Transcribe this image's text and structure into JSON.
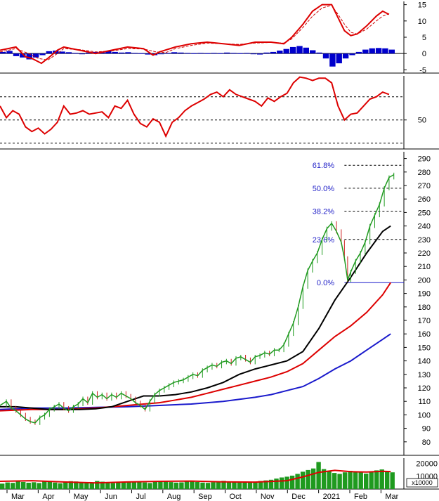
{
  "chart_data": {
    "type": "line",
    "months": [
      "Mar",
      "Apr",
      "May",
      "Jun",
      "Jul",
      "Aug",
      "Sep",
      "Oct",
      "Nov",
      "Dec",
      "2021",
      "Feb",
      "Mar"
    ],
    "macd": {
      "ticks": [
        15,
        10,
        5,
        0,
        -5
      ],
      "range": [
        -6,
        16
      ],
      "line": [
        [
          0,
          1
        ],
        [
          1,
          2
        ],
        [
          1.6,
          -1
        ],
        [
          2,
          -1.5
        ],
        [
          2.6,
          -3
        ],
        [
          3,
          -1.5
        ],
        [
          3.6,
          1
        ],
        [
          4,
          2
        ],
        [
          5,
          1
        ],
        [
          6,
          0
        ],
        [
          7,
          1
        ],
        [
          8,
          2
        ],
        [
          9,
          1.5
        ],
        [
          9.6,
          -0.5
        ],
        [
          10,
          0.5
        ],
        [
          11,
          2
        ],
        [
          12,
          3
        ],
        [
          13,
          3.5
        ],
        [
          14,
          3
        ],
        [
          15,
          2.5
        ],
        [
          16,
          3.5
        ],
        [
          17,
          3.5
        ],
        [
          17.8,
          3
        ],
        [
          18.3,
          5
        ],
        [
          19,
          9
        ],
        [
          19.6,
          13
        ],
        [
          20.2,
          15
        ],
        [
          20.8,
          15
        ],
        [
          21.2,
          11
        ],
        [
          21.6,
          7
        ],
        [
          22,
          5.5
        ],
        [
          22.4,
          6
        ],
        [
          23,
          8.5
        ],
        [
          23.6,
          11.5
        ],
        [
          24,
          13
        ],
        [
          24.4,
          12
        ]
      ],
      "signal": [
        [
          0,
          0.5
        ],
        [
          1,
          1.5
        ],
        [
          1.8,
          0
        ],
        [
          2.4,
          -1.5
        ],
        [
          3,
          -2
        ],
        [
          3.6,
          0
        ],
        [
          4,
          1.5
        ],
        [
          5,
          1.2
        ],
        [
          6,
          0.5
        ],
        [
          7,
          0.8
        ],
        [
          8,
          1.5
        ],
        [
          9,
          1.4
        ],
        [
          9.8,
          0.5
        ],
        [
          10.4,
          0.3
        ],
        [
          11,
          1.5
        ],
        [
          12,
          2.5
        ],
        [
          13,
          3.2
        ],
        [
          14,
          3
        ],
        [
          15,
          2.8
        ],
        [
          16,
          3.2
        ],
        [
          17,
          3.4
        ],
        [
          17.8,
          3.2
        ],
        [
          18.3,
          4.5
        ],
        [
          19,
          8
        ],
        [
          19.6,
          11.5
        ],
        [
          20.2,
          14
        ],
        [
          20.8,
          14.8
        ],
        [
          21.2,
          12
        ],
        [
          21.6,
          9
        ],
        [
          22,
          6.5
        ],
        [
          22.4,
          6
        ],
        [
          23,
          7.5
        ],
        [
          23.6,
          10
        ],
        [
          24,
          11.5
        ],
        [
          24.4,
          12.2
        ]
      ],
      "histogram": [
        0.5,
        0.8,
        -0.8,
        -1.2,
        -1.8,
        -1.2,
        -0.5,
        0.7,
        0.9,
        0.6,
        0.4,
        0.2,
        -0.2,
        0.3,
        0.5,
        0.6,
        0.8,
        0.5,
        0.3,
        0.4,
        0.2,
        0.1,
        -0.3,
        -0.5,
        -0.2,
        0.2,
        0.4,
        0.3,
        0.2,
        0.1,
        0.2,
        0.1,
        0.2,
        0.1,
        0.3,
        0.2,
        0.1,
        0.2,
        -0.1,
        -0.3,
        0.3,
        0.5,
        0.9,
        1.4,
        2.0,
        2.3,
        1.8,
        1.0,
        0.3,
        -1.5,
        -4.0,
        -3.0,
        -1.5,
        -0.5,
        0.5,
        1.2,
        1.6,
        1.7,
        1.6,
        1.2
      ]
    },
    "rsi": {
      "tick": 50,
      "range": [
        25,
        88
      ],
      "levels": [
        70,
        50,
        30
      ],
      "values": [
        [
          0,
          62
        ],
        [
          0.4,
          52
        ],
        [
          0.8,
          58
        ],
        [
          1.2,
          55
        ],
        [
          1.6,
          44
        ],
        [
          2,
          40
        ],
        [
          2.4,
          43
        ],
        [
          2.8,
          38
        ],
        [
          3.2,
          42
        ],
        [
          3.6,
          48
        ],
        [
          4,
          62
        ],
        [
          4.4,
          55
        ],
        [
          4.8,
          56
        ],
        [
          5.2,
          58
        ],
        [
          5.6,
          55
        ],
        [
          6,
          56
        ],
        [
          6.4,
          57
        ],
        [
          6.8,
          52
        ],
        [
          7.2,
          62
        ],
        [
          7.6,
          60
        ],
        [
          8,
          67
        ],
        [
          8.4,
          55
        ],
        [
          8.8,
          47
        ],
        [
          9.2,
          44
        ],
        [
          9.6,
          51
        ],
        [
          10,
          48
        ],
        [
          10.4,
          36
        ],
        [
          10.8,
          48
        ],
        [
          11.2,
          52
        ],
        [
          11.6,
          58
        ],
        [
          12,
          62
        ],
        [
          12.4,
          65
        ],
        [
          12.8,
          68
        ],
        [
          13.2,
          72
        ],
        [
          13.6,
          74
        ],
        [
          14,
          70
        ],
        [
          14.4,
          76
        ],
        [
          14.8,
          72
        ],
        [
          15.2,
          70
        ],
        [
          15.6,
          68
        ],
        [
          16,
          66
        ],
        [
          16.4,
          62
        ],
        [
          16.8,
          69
        ],
        [
          17.2,
          66
        ],
        [
          17.6,
          70
        ],
        [
          18,
          73
        ],
        [
          18.4,
          82
        ],
        [
          18.8,
          87
        ],
        [
          19.2,
          86
        ],
        [
          19.6,
          84
        ],
        [
          20,
          86
        ],
        [
          20.4,
          86
        ],
        [
          20.8,
          82
        ],
        [
          21.2,
          62
        ],
        [
          21.6,
          50
        ],
        [
          22,
          55
        ],
        [
          22.4,
          56
        ],
        [
          22.8,
          62
        ],
        [
          23.2,
          68
        ],
        [
          23.6,
          70
        ],
        [
          24,
          74
        ],
        [
          24.4,
          72
        ]
      ]
    },
    "price": {
      "ticks": [
        290,
        280,
        270,
        260,
        250,
        240,
        230,
        220,
        210,
        200,
        190,
        180,
        170,
        160,
        150,
        140,
        130,
        120,
        110,
        100,
        90,
        80
      ],
      "range": [
        70,
        295
      ],
      "close": [
        [
          0,
          107
        ],
        [
          0.4,
          110
        ],
        [
          0.7,
          105
        ],
        [
          1,
          103
        ],
        [
          1.3,
          100
        ],
        [
          1.6,
          97
        ],
        [
          1.9,
          95
        ],
        [
          2.2,
          94
        ],
        [
          2.5,
          98
        ],
        [
          2.8,
          100
        ],
        [
          3.1,
          104
        ],
        [
          3.4,
          106
        ],
        [
          3.7,
          108
        ],
        [
          4,
          105
        ],
        [
          4.3,
          103
        ],
        [
          4.6,
          106
        ],
        [
          4.9,
          108
        ],
        [
          5.2,
          112
        ],
        [
          5.5,
          109
        ],
        [
          5.8,
          116
        ],
        [
          6.1,
          113
        ],
        [
          6.4,
          115
        ],
        [
          6.7,
          112
        ],
        [
          7,
          115
        ],
        [
          7.3,
          113
        ],
        [
          7.6,
          116
        ],
        [
          7.9,
          114
        ],
        [
          8.2,
          112
        ],
        [
          8.5,
          109
        ],
        [
          8.8,
          107
        ],
        [
          9.1,
          104
        ],
        [
          9.4,
          110
        ],
        [
          9.7,
          115
        ],
        [
          10,
          118
        ],
        [
          10.3,
          120
        ],
        [
          10.6,
          122
        ],
        [
          10.9,
          124
        ],
        [
          11.2,
          125
        ],
        [
          11.5,
          126
        ],
        [
          11.8,
          128
        ],
        [
          12.1,
          130
        ],
        [
          12.4,
          129
        ],
        [
          12.7,
          133
        ],
        [
          13,
          135
        ],
        [
          13.3,
          137
        ],
        [
          13.6,
          136
        ],
        [
          13.9,
          139
        ],
        [
          14.2,
          140
        ],
        [
          14.5,
          138
        ],
        [
          14.8,
          142
        ],
        [
          15.1,
          143
        ],
        [
          15.4,
          141
        ],
        [
          15.7,
          139
        ],
        [
          16,
          143
        ],
        [
          16.3,
          144
        ],
        [
          16.6,
          146
        ],
        [
          16.9,
          145
        ],
        [
          17.2,
          148
        ],
        [
          17.5,
          148
        ],
        [
          17.8,
          152
        ],
        [
          18.1,
          160
        ],
        [
          18.4,
          168
        ],
        [
          18.7,
          180
        ],
        [
          19,
          195
        ],
        [
          19.3,
          207
        ],
        [
          19.6,
          214
        ],
        [
          19.9,
          220
        ],
        [
          20.2,
          230
        ],
        [
          20.5,
          238
        ],
        [
          20.8,
          242
        ],
        [
          21.1,
          236
        ],
        [
          21.4,
          228
        ],
        [
          21.6,
          216
        ],
        [
          21.8,
          200
        ],
        [
          22,
          206
        ],
        [
          22.3,
          214
        ],
        [
          22.6,
          220
        ],
        [
          22.9,
          228
        ],
        [
          23.2,
          240
        ],
        [
          23.5,
          248
        ],
        [
          23.8,
          256
        ],
        [
          24.1,
          268
        ],
        [
          24.4,
          276
        ],
        [
          24.7,
          278
        ]
      ],
      "ma50": [
        [
          0,
          106
        ],
        [
          1,
          106
        ],
        [
          2,
          105
        ],
        [
          3,
          104
        ],
        [
          4,
          104
        ],
        [
          5,
          104
        ],
        [
          6,
          104.5
        ],
        [
          7,
          106
        ],
        [
          8,
          110
        ],
        [
          9,
          114
        ],
        [
          10,
          114
        ],
        [
          11,
          115
        ],
        [
          12,
          117
        ],
        [
          13,
          120
        ],
        [
          14,
          124
        ],
        [
          15,
          130
        ],
        [
          16,
          134
        ],
        [
          17,
          137
        ],
        [
          18,
          140
        ],
        [
          19,
          147
        ],
        [
          20,
          164
        ],
        [
          21,
          185
        ],
        [
          22,
          202
        ],
        [
          23,
          220
        ],
        [
          24,
          236
        ],
        [
          24.5,
          240
        ]
      ],
      "ma100": [
        [
          0,
          103
        ],
        [
          2,
          104
        ],
        [
          4,
          104
        ],
        [
          6,
          105
        ],
        [
          7,
          106
        ],
        [
          8,
          107
        ],
        [
          9,
          108
        ],
        [
          10,
          109
        ],
        [
          11,
          111
        ],
        [
          12,
          113
        ],
        [
          13,
          116
        ],
        [
          14,
          119
        ],
        [
          15,
          122
        ],
        [
          16,
          125
        ],
        [
          17,
          128
        ],
        [
          18,
          132
        ],
        [
          19,
          138
        ],
        [
          20,
          148
        ],
        [
          21,
          158
        ],
        [
          22,
          166
        ],
        [
          23,
          176
        ],
        [
          24,
          189
        ],
        [
          24.5,
          198
        ]
      ],
      "ma200": [
        [
          0,
          104
        ],
        [
          2,
          105
        ],
        [
          4,
          105
        ],
        [
          6,
          105.5
        ],
        [
          8,
          106
        ],
        [
          10,
          107
        ],
        [
          12,
          108
        ],
        [
          14,
          110
        ],
        [
          16,
          113
        ],
        [
          17,
          115
        ],
        [
          18,
          118
        ],
        [
          19,
          121
        ],
        [
          20,
          127
        ],
        [
          21,
          134
        ],
        [
          22,
          140
        ],
        [
          23,
          148
        ],
        [
          24,
          156
        ],
        [
          24.5,
          160
        ]
      ],
      "fib": [
        {
          "label": "61.8%",
          "value": 285
        },
        {
          "label": "50.0%",
          "value": 268
        },
        {
          "label": "38.2%",
          "value": 251
        },
        {
          "label": "23.6%",
          "value": 230
        },
        {
          "label": "0.0%",
          "value": 198
        }
      ]
    },
    "volume": {
      "ticks": [
        "20000",
        "10000"
      ],
      "unit": "x10000",
      "range": [
        0,
        24000
      ],
      "ma_label": "",
      "bars": [
        4200,
        5100,
        4800,
        6000,
        5500,
        4900,
        5300,
        4700,
        6200,
        5800,
        5000,
        4500,
        5600,
        6100,
        5900,
        5200,
        4800,
        5000,
        6300,
        5700,
        5100,
        4600,
        4900,
        5500,
        6000,
        5800,
        5300,
        5100,
        4700,
        5600,
        6200,
        5900,
        5400,
        5000,
        5200,
        5700,
        6100,
        5500,
        5000,
        4800,
        5300,
        5900,
        6400,
        6000,
        5600,
        5100,
        4900,
        5400,
        5800,
        6300,
        6700,
        7200,
        8100,
        9000,
        9600,
        10400,
        11800,
        13500,
        14800,
        16000,
        21000,
        15500,
        14000,
        12500,
        11800,
        13000,
        14200,
        13600,
        12800,
        12000,
        13200,
        14500,
        15200,
        14000,
        13000
      ],
      "ma": [
        [
          0,
          6000
        ],
        [
          2,
          6500
        ],
        [
          4,
          5500
        ],
        [
          6,
          4800
        ],
        [
          8,
          5500
        ],
        [
          10,
          6000
        ],
        [
          12,
          6200
        ],
        [
          14,
          5600
        ],
        [
          16,
          5400
        ],
        [
          18,
          6500
        ],
        [
          19,
          9500
        ],
        [
          20,
          13000
        ],
        [
          21,
          14500
        ],
        [
          22,
          13500
        ],
        [
          23,
          13200
        ],
        [
          24,
          13800
        ],
        [
          24.5,
          13600
        ]
      ]
    }
  }
}
